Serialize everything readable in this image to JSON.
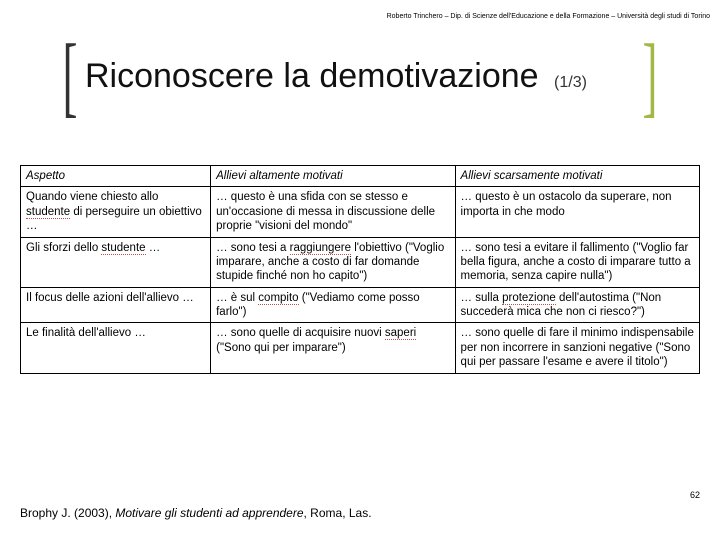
{
  "header": "Roberto Trinchero – Dip. di Scienze dell'Educazione e della Formazione – Università degli studi di Torino",
  "title": "Riconoscere la demotivazione",
  "subtitle": "(1/3)",
  "table": {
    "headers": [
      "Aspetto",
      "Allievi altamente motivati",
      "Allievi scarsamente motivati"
    ],
    "rows": [
      {
        "c1_pre": "Quando viene chiesto allo ",
        "c1_dot": "studente",
        "c1_post": " di perseguire un obiettivo …",
        "c2": "… questo è una sfida con se stesso e un'occasione di messa in discussione delle proprie \"visioni del mondo\"",
        "c3": "… questo è un ostacolo da superare, non importa in che modo"
      },
      {
        "c1_pre": "Gli sforzi dello ",
        "c1_dot": "studente",
        "c1_post": " …",
        "c2_pre": "… sono tesi a ",
        "c2_dot": "raggiungere",
        "c2_post": " l'obiettivo (\"Voglio imparare, anche a costo di far domande stupide finché non ho capito\")",
        "c3": "… sono tesi a evitare il fallimento (\"Voglio far bella figura, anche a costo di imparare tutto a memoria, senza capire nulla\")"
      },
      {
        "c1": "Il focus delle azioni dell'allievo …",
        "c2_pre": "… è sul ",
        "c2_dot": "compito",
        "c2_post": " (\"Vediamo come posso farlo\")",
        "c3_pre": "… sulla ",
        "c3_dot": "protezione",
        "c3_post": " dell'autostima (\"Non succederà mica che non ci riesco?\")"
      },
      {
        "c1": "Le finalità dell'allievo …",
        "c2_pre": "… sono quelle di acquisire nuovi ",
        "c2_dot": "saperi",
        "c2_post": " (\"Sono qui per imparare\")",
        "c3": "… sono quelle di fare il minimo indispensabile per non incorrere in sanzioni negative (\"Sono qui per passare l'esame e avere il titolo\")"
      }
    ]
  },
  "footer": {
    "author": "Brophy J. (2003), ",
    "book": "Motivare gli studenti ad apprendere",
    "rest": ", Roma, Las."
  },
  "pageNumber": "62"
}
